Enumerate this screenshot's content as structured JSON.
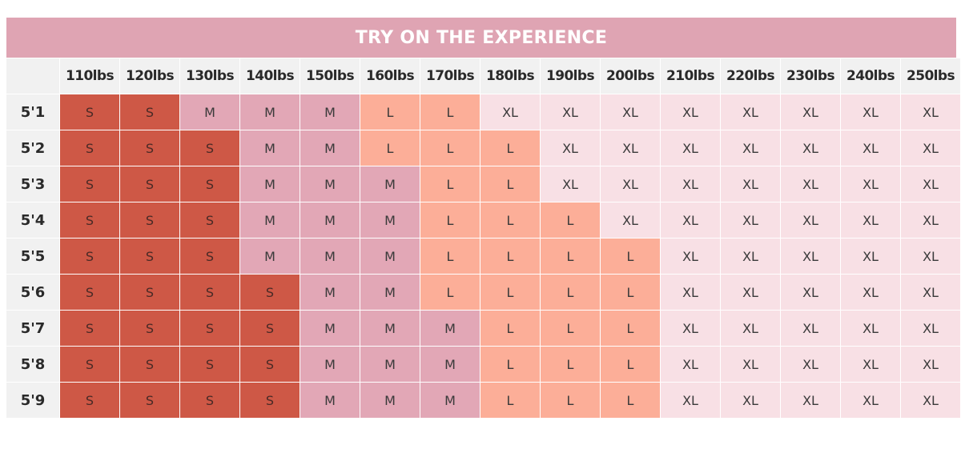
{
  "title": "TRY ON THE EXPERIENCE",
  "weights": [
    "110lbs",
    "120lbs",
    "130lbs",
    "140lbs",
    "150lbs",
    "160lbs",
    "170lbs",
    "180lbs",
    "190lbs",
    "200lbs",
    "210lbs",
    "220lbs",
    "230lbs",
    "240lbs",
    "250lbs"
  ],
  "rows": [
    {
      "height": "5'1",
      "sizes": [
        "S",
        "S",
        "M",
        "M",
        "M",
        "L",
        "L",
        "XL",
        "XL",
        "XL",
        "XL",
        "XL",
        "XL",
        "XL",
        "XL"
      ]
    },
    {
      "height": "5'2",
      "sizes": [
        "S",
        "S",
        "S",
        "M",
        "M",
        "L",
        "L",
        "L",
        "XL",
        "XL",
        "XL",
        "XL",
        "XL",
        "XL",
        "XL"
      ]
    },
    {
      "height": "5'3",
      "sizes": [
        "S",
        "S",
        "S",
        "M",
        "M",
        "M",
        "L",
        "L",
        "XL",
        "XL",
        "XL",
        "XL",
        "XL",
        "XL",
        "XL"
      ]
    },
    {
      "height": "5'4",
      "sizes": [
        "S",
        "S",
        "S",
        "M",
        "M",
        "M",
        "L",
        "L",
        "L",
        "XL",
        "XL",
        "XL",
        "XL",
        "XL",
        "XL"
      ]
    },
    {
      "height": "5'5",
      "sizes": [
        "S",
        "S",
        "S",
        "M",
        "M",
        "M",
        "L",
        "L",
        "L",
        "L",
        "XL",
        "XL",
        "XL",
        "XL",
        "XL"
      ]
    },
    {
      "height": "5'6",
      "sizes": [
        "S",
        "S",
        "S",
        "S",
        "M",
        "M",
        "L",
        "L",
        "L",
        "L",
        "XL",
        "XL",
        "XL",
        "XL",
        "XL"
      ]
    },
    {
      "height": "5'7",
      "sizes": [
        "S",
        "S",
        "S",
        "S",
        "M",
        "M",
        "M",
        "L",
        "L",
        "L",
        "XL",
        "XL",
        "XL",
        "XL",
        "XL"
      ]
    },
    {
      "height": "5'8",
      "sizes": [
        "S",
        "S",
        "S",
        "S",
        "M",
        "M",
        "M",
        "L",
        "L",
        "L",
        "XL",
        "XL",
        "XL",
        "XL",
        "XL"
      ]
    },
    {
      "height": "5'9",
      "sizes": [
        "S",
        "S",
        "S",
        "S",
        "M",
        "M",
        "M",
        "L",
        "L",
        "L",
        "XL",
        "XL",
        "XL",
        "XL",
        "XL"
      ]
    }
  ],
  "size_colors": {
    "S": "#ce5846",
    "M": "#e2a7b6",
    "L": "#fcae98",
    "XL": "#f8e0e5"
  },
  "title_color": "#dfa4b3"
}
